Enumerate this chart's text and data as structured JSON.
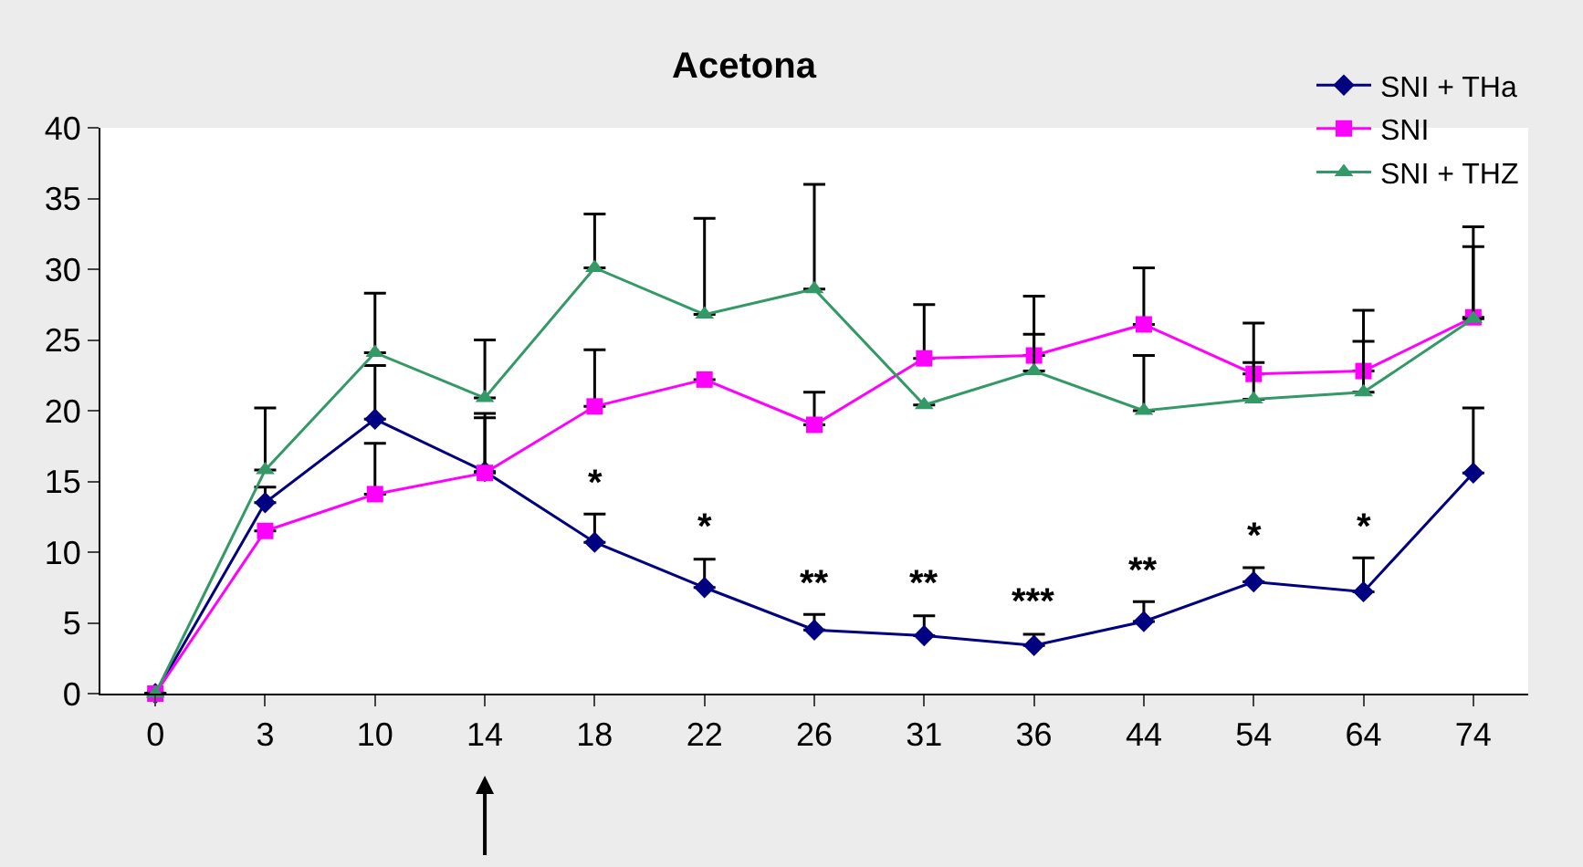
{
  "chart_data": {
    "type": "line",
    "title": "Acetona",
    "categories": [
      "0",
      "3",
      "10",
      "14",
      "18",
      "22",
      "26",
      "31",
      "36",
      "44",
      "54",
      "64",
      "74"
    ],
    "ylim": [
      0,
      40
    ],
    "yticks": [
      0,
      5,
      10,
      15,
      20,
      25,
      30,
      35,
      40
    ],
    "legend": "top right",
    "series": [
      {
        "name": "SNI + THa",
        "color": "#000080",
        "marker": "diamond",
        "values": [
          0,
          13.5,
          19.4,
          15.7,
          10.7,
          7.5,
          4.5,
          4.1,
          3.4,
          5.1,
          7.9,
          7.2,
          15.6
        ],
        "value_labels": [
          null,
          null,
          null,
          null,
          "*",
          "*",
          "**",
          "**",
          "***",
          "**",
          "*",
          "*",
          null
        ],
        "errors": [
          null,
          [
            13.5,
            14.6
          ],
          [
            19.4,
            23.2
          ],
          [
            15.7,
            19.5
          ],
          [
            10.7,
            12.7
          ],
          [
            7.5,
            9.5
          ],
          [
            4.5,
            5.6
          ],
          [
            4.1,
            5.5
          ],
          [
            3.4,
            4.2
          ],
          [
            5.1,
            6.5
          ],
          [
            7.9,
            8.9
          ],
          [
            7.2,
            9.6
          ],
          [
            15.6,
            20.2
          ]
        ]
      },
      {
        "name": "SNI",
        "color": "#ff00ff",
        "marker": "square",
        "values": [
          0,
          11.5,
          14.1,
          15.6,
          20.3,
          22.2,
          19.0,
          23.7,
          23.9,
          26.1,
          22.6,
          22.8,
          26.6
        ],
        "errors": [
          null,
          null,
          [
            14.1,
            17.7
          ],
          [
            15.6,
            19.8
          ],
          [
            20.3,
            24.3
          ],
          null,
          [
            19.0,
            21.3
          ],
          [
            23.7,
            27.5
          ],
          [
            23.9,
            28.1
          ],
          [
            26.1,
            30.1
          ],
          [
            22.6,
            26.2
          ],
          [
            22.8,
            27.1
          ],
          [
            26.6,
            33.0
          ]
        ]
      },
      {
        "name": "SNI + THZ",
        "color": "#339966",
        "marker": "triangle",
        "values": [
          0,
          15.8,
          24.1,
          20.9,
          30.1,
          26.8,
          28.6,
          20.4,
          22.8,
          20.0,
          20.8,
          21.3,
          26.5
        ],
        "errors": [
          null,
          [
            15.8,
            20.2
          ],
          [
            24.1,
            28.3
          ],
          [
            20.9,
            25.0
          ],
          [
            30.1,
            33.9
          ],
          [
            26.8,
            33.6
          ],
          [
            28.6,
            36.0
          ],
          null,
          [
            22.8,
            25.4
          ],
          [
            20.0,
            23.9
          ],
          [
            20.8,
            23.4
          ],
          [
            21.3,
            24.9
          ],
          [
            26.5,
            31.6
          ]
        ]
      }
    ]
  }
}
